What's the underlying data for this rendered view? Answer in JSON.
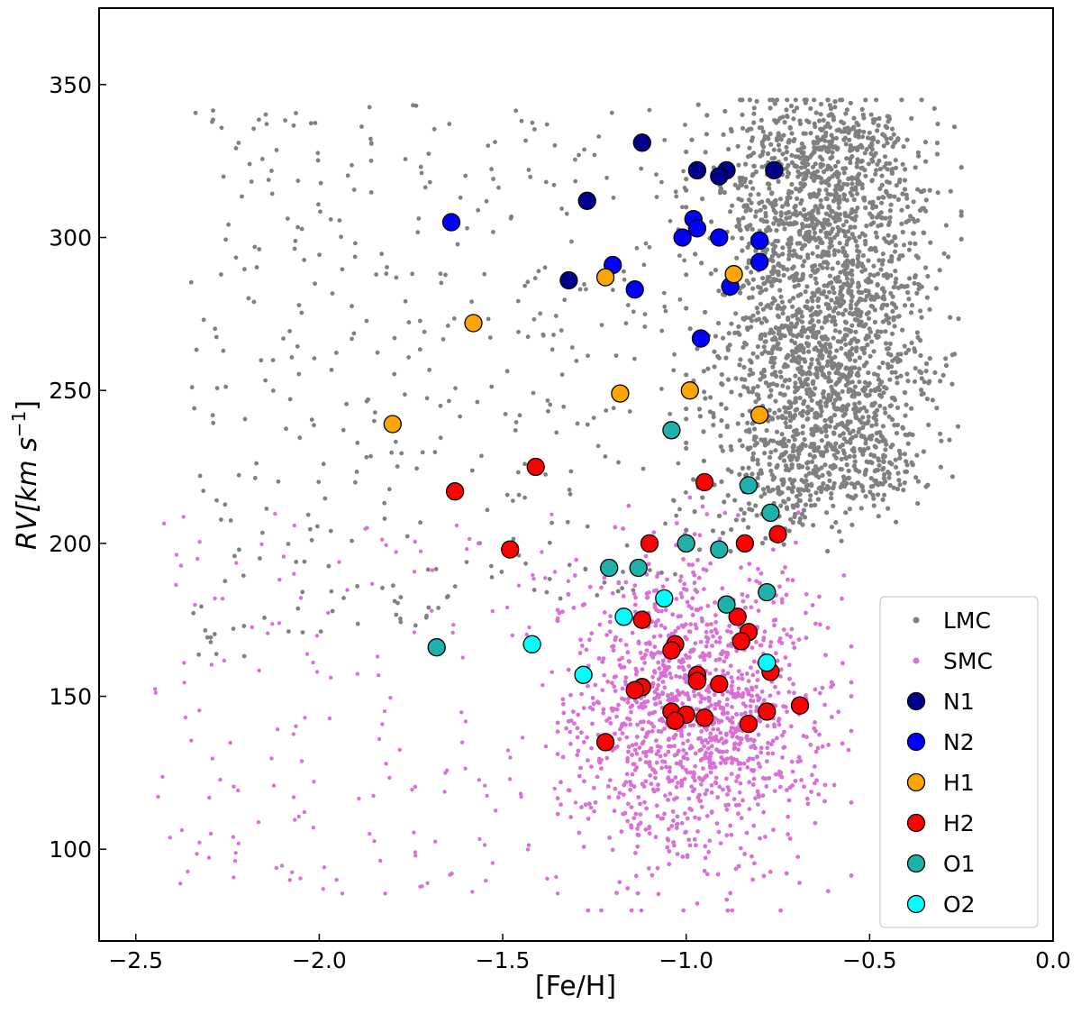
{
  "chart_data": {
    "type": "scatter",
    "title": "",
    "xlabel": "[Fe/H]",
    "ylabel_main": "RV[km  s",
    "ylabel_exp": "−1",
    "ylabel_close": "]",
    "xlim": [
      -2.6,
      0.0
    ],
    "ylim": [
      70,
      375
    ],
    "xticks": [
      -2.5,
      -2.0,
      -1.5,
      -1.0,
      -0.5,
      0.0
    ],
    "xtick_labels": [
      "−2.5",
      "−2.0",
      "−1.5",
      "−1.0",
      "−0.5",
      "0.0"
    ],
    "yticks": [
      100,
      150,
      200,
      250,
      300,
      350
    ],
    "ytick_labels": [
      "100",
      "150",
      "200",
      "250",
      "300",
      "350"
    ],
    "legend_position": "lower-right",
    "series": [
      {
        "name": "LMC",
        "color": "#808080",
        "marker": "dot",
        "values_description": "dense cloud of ~3000 field stars",
        "core_x": [
          -1.0,
          -0.25
        ],
        "core_y": [
          185,
          345
        ],
        "sparse_x": [
          -2.35,
          -1.0
        ],
        "sparse_y": [
          160,
          345
        ]
      },
      {
        "name": "SMC",
        "color": "#da70d6",
        "marker": "dot",
        "values_description": "cloud of ~1500 field stars",
        "core_x": [
          -1.3,
          -0.55
        ],
        "core_y": [
          80,
          215
        ],
        "sparse_x": [
          -2.45,
          -1.3
        ],
        "sparse_y": [
          80,
          215
        ]
      },
      {
        "name": "N1",
        "color": "#00008b",
        "marker": "circle",
        "points": [
          [
            -1.12,
            331
          ],
          [
            -0.97,
            322
          ],
          [
            -0.89,
            322
          ],
          [
            -0.91,
            320
          ],
          [
            -0.76,
            322
          ],
          [
            -1.27,
            312
          ],
          [
            -1.32,
            286
          ]
        ]
      },
      {
        "name": "N2",
        "color": "#0000ff",
        "marker": "circle",
        "points": [
          [
            -1.64,
            305
          ],
          [
            -0.98,
            306
          ],
          [
            -0.97,
            303
          ],
          [
            -1.01,
            300
          ],
          [
            -0.91,
            300
          ],
          [
            -0.8,
            299
          ],
          [
            -0.8,
            292
          ],
          [
            -1.2,
            291
          ],
          [
            -1.14,
            283
          ],
          [
            -0.88,
            284
          ],
          [
            -0.96,
            267
          ]
        ]
      },
      {
        "name": "H1",
        "color": "#ffa500",
        "marker": "circle",
        "points": [
          [
            -1.22,
            287
          ],
          [
            -0.87,
            288
          ],
          [
            -1.58,
            272
          ],
          [
            -1.18,
            249
          ],
          [
            -0.99,
            250
          ],
          [
            -0.8,
            242
          ],
          [
            -1.8,
            239
          ]
        ]
      },
      {
        "name": "H2",
        "color": "#ff0000",
        "marker": "circle",
        "points": [
          [
            -1.41,
            225
          ],
          [
            -1.63,
            217
          ],
          [
            -0.95,
            220
          ],
          [
            -1.48,
            198
          ],
          [
            -1.1,
            200
          ],
          [
            -0.84,
            200
          ],
          [
            -0.75,
            203
          ],
          [
            -1.12,
            175
          ],
          [
            -0.86,
            176
          ],
          [
            -0.83,
            171
          ],
          [
            -0.85,
            168
          ],
          [
            -1.03,
            167
          ],
          [
            -1.04,
            165
          ],
          [
            -0.77,
            158
          ],
          [
            -0.97,
            157
          ],
          [
            -0.97,
            155
          ],
          [
            -0.91,
            154
          ],
          [
            -1.12,
            153
          ],
          [
            -1.14,
            152
          ],
          [
            -0.69,
            147
          ],
          [
            -0.78,
            145
          ],
          [
            -1.04,
            145
          ],
          [
            -1.0,
            144
          ],
          [
            -1.03,
            142
          ],
          [
            -0.95,
            143
          ],
          [
            -0.83,
            141
          ],
          [
            -1.22,
            135
          ]
        ]
      },
      {
        "name": "O1",
        "color": "#20b2aa",
        "marker": "circle",
        "points": [
          [
            -1.04,
            237
          ],
          [
            -0.83,
            219
          ],
          [
            -0.77,
            210
          ],
          [
            -1.0,
            200
          ],
          [
            -0.91,
            198
          ],
          [
            -1.21,
            192
          ],
          [
            -1.13,
            192
          ],
          [
            -0.78,
            184
          ],
          [
            -0.89,
            180
          ],
          [
            -1.68,
            166
          ]
        ]
      },
      {
        "name": "O2",
        "color": "#00ffff",
        "marker": "circle",
        "points": [
          [
            -1.06,
            182
          ],
          [
            -1.17,
            176
          ],
          [
            -1.42,
            167
          ],
          [
            -0.78,
            161
          ],
          [
            -1.28,
            157
          ]
        ]
      }
    ]
  }
}
